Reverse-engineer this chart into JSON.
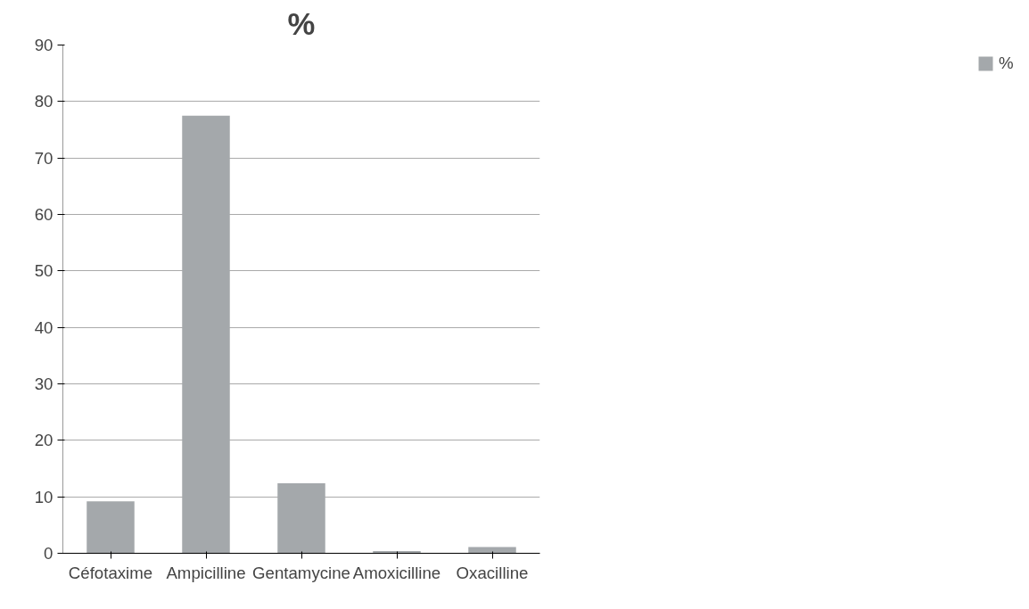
{
  "chart_data": {
    "type": "bar",
    "title": "%",
    "categories": [
      "Céfotaxime",
      "Ampicilline",
      "Gentamycine",
      "Amoxicilline",
      "Oxacilline"
    ],
    "series": [
      {
        "name": "%",
        "color": "#a4a8ab",
        "values": [
          9.2,
          77.5,
          12.4,
          0.4,
          1.1
        ]
      }
    ],
    "ylim": [
      0,
      90
    ],
    "yticks": [
      0,
      10,
      20,
      30,
      40,
      50,
      60,
      70,
      80,
      90
    ],
    "grid": "y",
    "legend": "right"
  }
}
